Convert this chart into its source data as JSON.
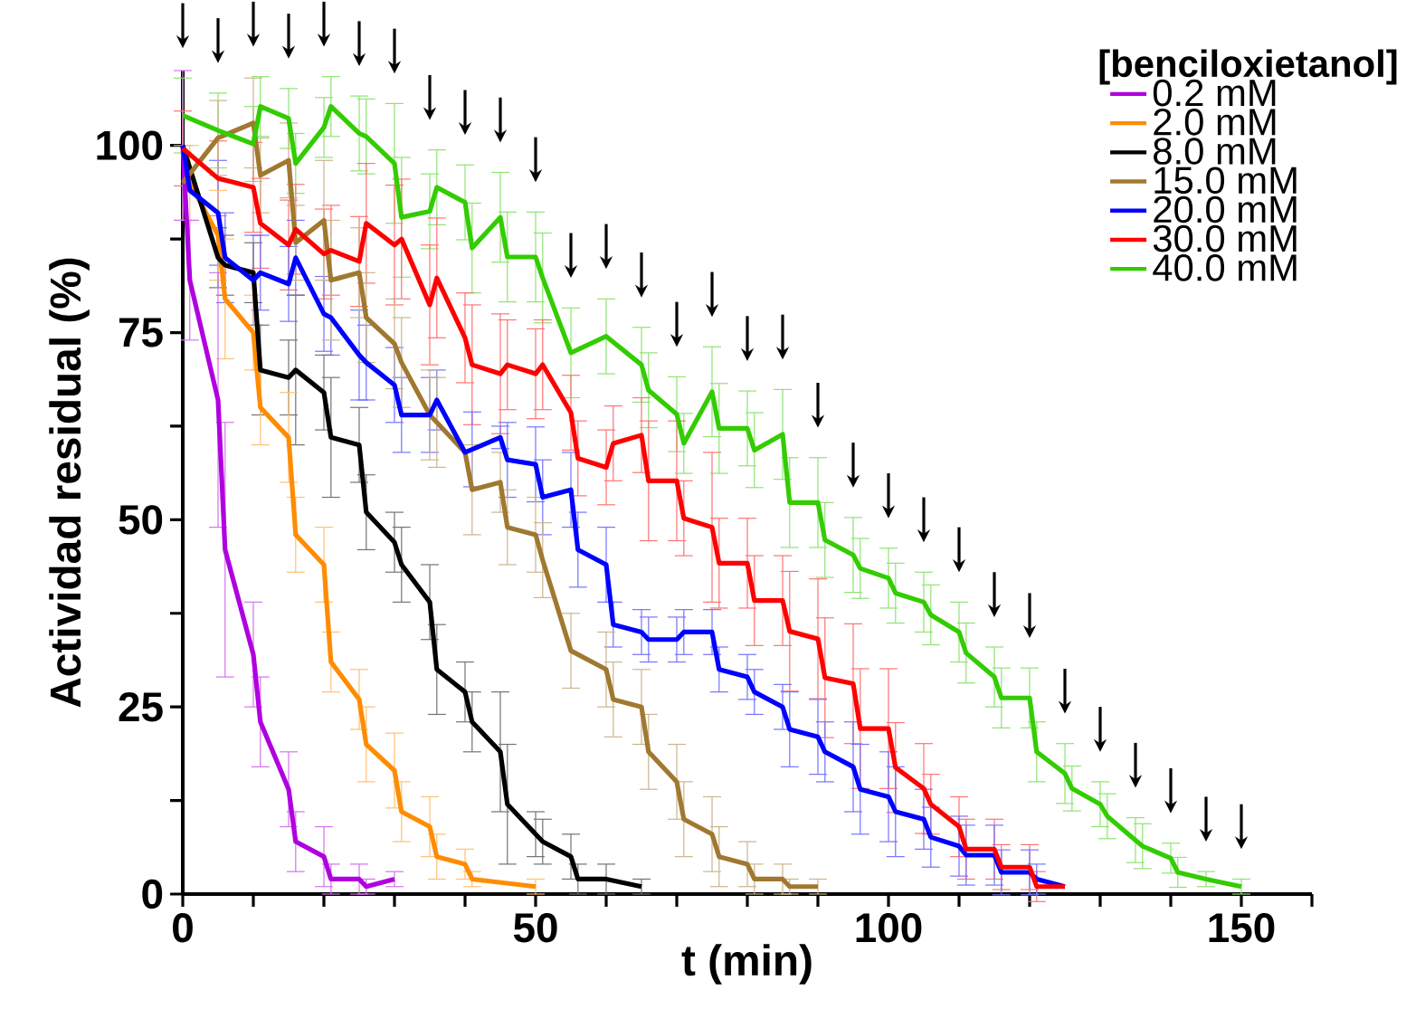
{
  "chart_data": {
    "type": "line",
    "xlabel": "t (min)",
    "ylabel": "Actividad residual (%)",
    "legend_title": "[benciloxietanol]",
    "legend": "top right",
    "xlim": [
      0,
      160
    ],
    "ylim": [
      0,
      110
    ],
    "xticks": [
      0,
      {
        "value": 10,
        "label": null
      },
      {
        "value": 20,
        "label": null
      },
      {
        "value": 30,
        "label": null
      },
      {
        "value": 40,
        "label": null
      },
      50,
      {
        "value": 60,
        "label": null
      },
      {
        "value": 70,
        "label": null
      },
      {
        "value": 80,
        "label": null
      },
      {
        "value": 90,
        "label": null
      },
      100,
      {
        "value": 110,
        "label": null
      },
      {
        "value": 120,
        "label": null
      },
      {
        "value": 130,
        "label": null
      },
      {
        "value": 140,
        "label": null
      },
      150,
      {
        "value": 160,
        "label": null
      }
    ],
    "yticks": [
      0,
      {
        "value": 12.5,
        "label": null
      },
      25,
      {
        "value": 37.5,
        "label": null
      },
      50,
      {
        "value": 62.5,
        "label": null
      },
      75,
      {
        "value": 87.5,
        "label": null
      },
      100
    ],
    "series": [
      {
        "name": "0.2 mM",
        "color": "#b000e0",
        "x": [
          0,
          1,
          5,
          6,
          10,
          11,
          15,
          16,
          20,
          21,
          25,
          26,
          30
        ],
        "values": [
          100,
          82,
          66,
          46,
          32,
          23,
          14,
          7,
          5,
          2,
          2,
          1,
          2
        ],
        "errors": [
          10,
          8,
          17,
          17,
          7,
          6,
          5,
          4,
          4,
          2,
          2,
          1,
          1
        ]
      },
      {
        "name": "2.0 mM",
        "color": "#ff8c00",
        "x": [
          0,
          1,
          5,
          6,
          10,
          11,
          15,
          16,
          20,
          21,
          25,
          26,
          30,
          31,
          35,
          36,
          40,
          41,
          50
        ],
        "values": [
          100,
          95,
          88,
          79.5,
          75,
          65,
          61,
          48,
          44,
          31,
          26,
          20,
          16.5,
          11,
          9,
          5,
          4,
          2,
          1
        ],
        "errors": [
          null,
          5,
          6,
          8,
          5,
          5,
          6,
          5,
          5,
          4,
          4,
          5,
          5,
          4,
          4,
          3,
          2,
          1,
          1
        ]
      },
      {
        "name": "8.0 mM",
        "color": "#000000",
        "x": [
          0,
          5,
          6,
          10,
          11,
          15,
          16,
          20,
          21,
          25,
          26,
          30,
          31,
          35,
          36,
          40,
          41,
          45,
          46,
          50,
          51,
          55,
          56,
          60,
          65
        ],
        "values": [
          100,
          85,
          84,
          83,
          70,
          69,
          70,
          67,
          61,
          60,
          51,
          47,
          44,
          39,
          30,
          27,
          23,
          19,
          12,
          8,
          7,
          5,
          2,
          2,
          1
        ],
        "errors": [
          null,
          4,
          4,
          4,
          6,
          5,
          10,
          5,
          8,
          5,
          5,
          4,
          5,
          5,
          6,
          4,
          4,
          8,
          8,
          3,
          3,
          3,
          2,
          2,
          1
        ]
      },
      {
        "name": "15.0 mM",
        "color": "#a07830",
        "x": [
          0,
          5,
          10,
          11,
          15,
          16,
          20,
          21,
          25,
          26,
          30,
          31,
          35,
          36,
          40,
          41,
          45,
          46,
          50,
          51,
          55,
          60,
          61,
          65,
          66,
          70,
          71,
          75,
          76,
          80,
          81,
          85,
          86,
          90
        ],
        "values": [
          95,
          101,
          103,
          96,
          98,
          87,
          90,
          82,
          83,
          77,
          73.5,
          71,
          64,
          63,
          59,
          54,
          55,
          49,
          48,
          44.6,
          32.5,
          30,
          26,
          25,
          19,
          15,
          10,
          8,
          5,
          4,
          2,
          2,
          1,
          1
        ],
        "errors": [
          5,
          5,
          6,
          5,
          5,
          5,
          8,
          8,
          6,
          6,
          6,
          6,
          6,
          6,
          null,
          6,
          4,
          5,
          5,
          5,
          5,
          5,
          5,
          5,
          5,
          5,
          5,
          5,
          4,
          3,
          2,
          2,
          1,
          1
        ]
      },
      {
        "name": "20.0 mM",
        "color": "#0000ff",
        "x": [
          0,
          1,
          5,
          6,
          10,
          11,
          15,
          16,
          20,
          21,
          25,
          26,
          30,
          31,
          35,
          36,
          40,
          41,
          45,
          46,
          50,
          51,
          55,
          56,
          60,
          61,
          65,
          66,
          70,
          71,
          75,
          76,
          80,
          81,
          85,
          86,
          90,
          91,
          95,
          96,
          100,
          101,
          105,
          106,
          110,
          111,
          115,
          116,
          120,
          121,
          125
        ],
        "values": [
          100,
          94,
          91,
          85,
          82,
          83,
          81.5,
          85,
          77.5,
          77,
          72,
          71,
          68,
          64,
          64,
          66,
          59,
          59.4,
          61,
          58,
          57.4,
          53,
          54,
          46,
          44,
          36,
          35,
          34,
          34,
          35,
          35,
          30,
          29,
          27,
          25,
          22,
          21,
          19,
          17,
          14,
          13,
          11,
          10,
          7.6,
          6.4,
          5.2,
          5.2,
          2.9,
          2.9,
          2,
          1
        ],
        "errors": [
          null,
          null,
          7,
          6,
          6,
          5,
          5,
          5,
          5,
          5,
          6,
          5,
          5,
          5,
          5,
          4,
          null,
          5,
          1.5,
          5,
          5,
          5,
          5,
          5,
          5,
          3,
          3,
          3,
          3,
          3,
          3,
          3,
          3,
          3,
          3,
          5,
          5,
          4,
          6,
          6,
          6,
          6,
          4,
          4,
          4,
          4,
          4,
          3,
          3,
          2,
          null
        ]
      },
      {
        "name": "30.0 mM",
        "color": "#ff0000",
        "x": [
          0,
          5,
          10,
          11,
          15,
          16,
          20,
          21,
          25,
          26,
          30,
          31,
          35,
          36,
          40,
          41,
          45,
          46,
          50,
          51,
          55,
          56,
          60,
          61,
          65,
          66,
          70,
          71,
          75,
          76,
          80,
          81,
          85,
          86,
          90,
          91,
          95,
          96,
          100,
          101,
          105,
          106,
          110,
          111,
          115,
          116,
          120,
          121,
          125
        ],
        "values": [
          99.6,
          95.6,
          94.4,
          89.6,
          86.7,
          88.8,
          85.5,
          86,
          84.5,
          89.6,
          86.7,
          87.5,
          78.7,
          82.3,
          74.3,
          70.7,
          69.5,
          70.7,
          69.5,
          70.7,
          64.3,
          58.2,
          57,
          60.2,
          61.3,
          55.2,
          55.2,
          50.2,
          49,
          44.2,
          44.2,
          39.2,
          39.2,
          35.1,
          34.1,
          28.9,
          28.1,
          22.1,
          22.1,
          16.9,
          14.1,
          12,
          9,
          6,
          6,
          3.6,
          3.6,
          1,
          1
        ],
        "errors": [
          5,
          5,
          6,
          6,
          6,
          6,
          6,
          6,
          6,
          8,
          8,
          8,
          8,
          8,
          6,
          8,
          8,
          6,
          6,
          6,
          5,
          5,
          5,
          5,
          5,
          8,
          8,
          5,
          10,
          6,
          6,
          6,
          6,
          8,
          8,
          8,
          8,
          8,
          8,
          6,
          6,
          4,
          4,
          4,
          4,
          3,
          3,
          2,
          null
        ]
      },
      {
        "name": "40.0 mM",
        "color": "#33cc00",
        "x": [
          0,
          5,
          10,
          11,
          15,
          16,
          20,
          21,
          25,
          26,
          30,
          31,
          35,
          36,
          40,
          41,
          45,
          46,
          50,
          51,
          55,
          60,
          65,
          66,
          70,
          71,
          75,
          76,
          80,
          81,
          85,
          86,
          90,
          91,
          95,
          96,
          100,
          101,
          105,
          106,
          110,
          111,
          115,
          116,
          120,
          121,
          125,
          126,
          130,
          131,
          135,
          136,
          140,
          141,
          145,
          150
        ],
        "values": [
          104,
          102,
          100.2,
          105.2,
          103.6,
          97.6,
          102.4,
          105.2,
          101.6,
          101.2,
          97.6,
          90.4,
          91.2,
          94.4,
          92.4,
          86.3,
          90.4,
          85.1,
          85.1,
          82.3,
          72.3,
          74.5,
          70.7,
          67.3,
          64.1,
          60.2,
          67.1,
          62.2,
          62.2,
          59.3,
          61.4,
          52.3,
          52.3,
          47.3,
          45.3,
          43.5,
          42.2,
          40.2,
          39,
          37.3,
          35,
          32.2,
          29,
          26.2,
          26.2,
          19,
          16.1,
          14.1,
          12,
          10.4,
          7.2,
          6.4,
          4.8,
          2.9,
          2,
          1
        ],
        "errors": [
          5,
          5,
          5,
          4,
          4,
          4,
          4,
          4,
          5,
          5,
          8,
          8,
          5,
          5,
          5,
          6,
          6,
          6,
          6,
          6,
          6,
          5,
          5,
          5,
          5,
          4,
          6,
          6,
          5,
          5,
          6,
          6,
          6,
          5,
          5,
          4,
          4,
          4,
          4,
          4,
          4,
          4,
          4,
          4,
          4,
          4,
          4,
          3,
          3,
          3,
          3,
          3,
          2,
          2,
          1,
          1
        ]
      }
    ]
  }
}
